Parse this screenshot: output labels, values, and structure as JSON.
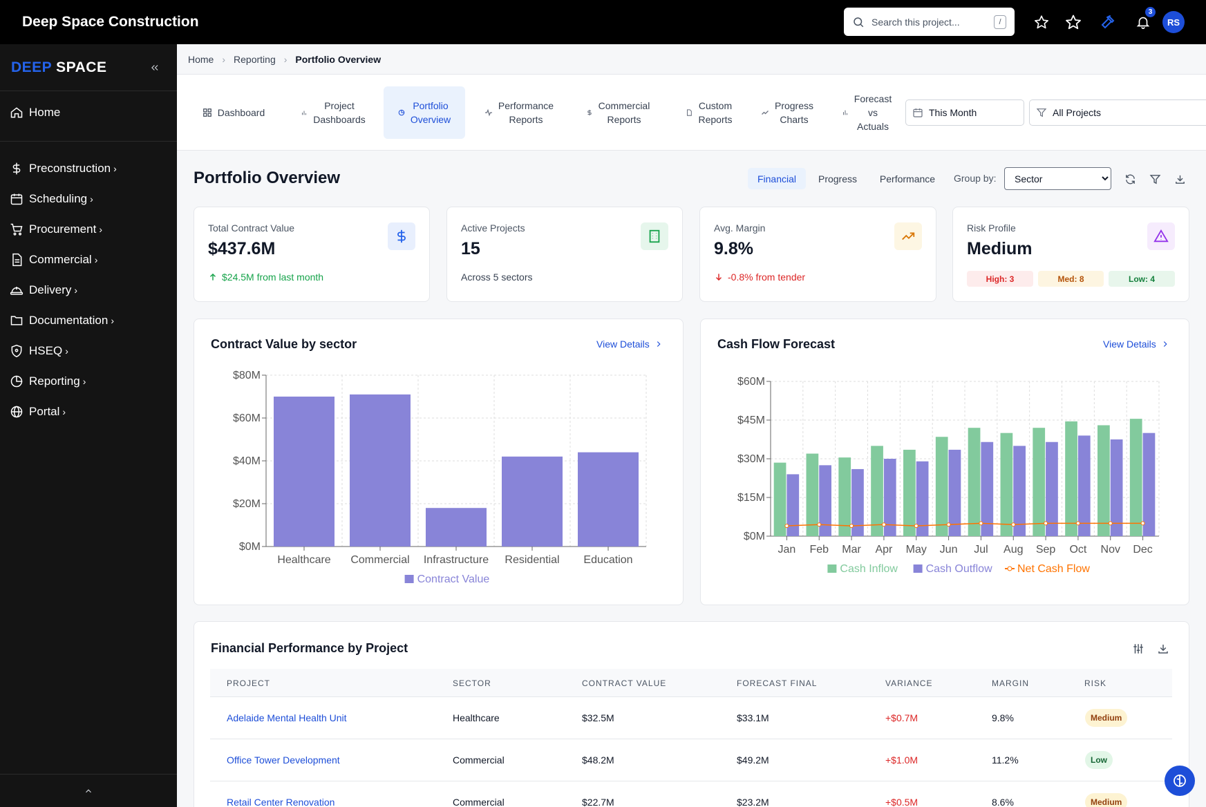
{
  "app": {
    "title": "Deep Space Construction"
  },
  "search": {
    "placeholder": "Search this project...",
    "shortcut": "/"
  },
  "header": {
    "notification_count": "3",
    "avatar_initials": "RS",
    "accent": "#1d4ed8"
  },
  "sidebar": {
    "brand_part1": "DEEP",
    "brand_part2": "SPACE",
    "home": "Home",
    "items": [
      {
        "label": "Preconstruction",
        "icon": "dollar-icon"
      },
      {
        "label": "Scheduling",
        "icon": "calendar-icon"
      },
      {
        "label": "Procurement",
        "icon": "cart-icon"
      },
      {
        "label": "Commercial",
        "icon": "document-icon"
      },
      {
        "label": "Delivery",
        "icon": "hardhat-icon"
      },
      {
        "label": "Documentation",
        "icon": "folder-icon"
      },
      {
        "label": "HSEQ",
        "icon": "shield-icon"
      },
      {
        "label": "Reporting",
        "icon": "piechart-icon"
      },
      {
        "label": "Portal",
        "icon": "globe-icon"
      }
    ]
  },
  "breadcrumb": {
    "home": "Home",
    "reporting": "Reporting",
    "current": "Portfolio Overview"
  },
  "tabs": [
    {
      "line1": "Dashboard",
      "line2": "",
      "line3": "",
      "icon": "grid-icon"
    },
    {
      "line1": "Project",
      "line2": "Dashboards",
      "line3": "",
      "icon": "bar-icon"
    },
    {
      "line1": "Portfolio",
      "line2": "Overview",
      "line3": "",
      "icon": "pie-icon"
    },
    {
      "line1": "Performance",
      "line2": "Reports",
      "line3": "",
      "icon": "pulse-icon"
    },
    {
      "line1": "Commercial",
      "line2": "Reports",
      "line3": "",
      "icon": "dollar-icon"
    },
    {
      "line1": "Custom",
      "line2": "Reports",
      "line3": "",
      "icon": "file-icon"
    },
    {
      "line1": "Progress",
      "line2": "Charts",
      "line3": "",
      "icon": "trend-icon"
    },
    {
      "line1": "Forecast",
      "line2": "vs",
      "line3": "Actuals",
      "icon": "chart-icon"
    }
  ],
  "filters": {
    "date": "This Month",
    "projects": "All Projects"
  },
  "page": {
    "title": "Portfolio Overview",
    "view_tabs": [
      "Financial",
      "Progress",
      "Performance"
    ],
    "group_by_label": "Group by:",
    "group_by_value": "Sector",
    "group_by_options": [
      "Sector"
    ]
  },
  "kpis": [
    {
      "label": "Total Contract Value",
      "value": "$437.6M",
      "sub": "$24.5M from last month",
      "icon": "dollar-icon"
    },
    {
      "label": "Active Projects",
      "value": "15",
      "sub": "Across 5 sectors",
      "icon": "building-icon"
    },
    {
      "label": "Avg. Margin",
      "value": "9.8%",
      "sub": "-0.8% from tender",
      "icon": "trending-up-icon"
    },
    {
      "label": "Risk Profile",
      "value": "Medium",
      "icon": "warning-icon",
      "high": "High: 3",
      "med": "Med: 8",
      "low": "Low: 4"
    }
  ],
  "charts_ui": {
    "view_details": "View Details"
  },
  "chart_data": [
    {
      "type": "bar",
      "title": "Contract Value by sector",
      "categories": [
        "Healthcare",
        "Commercial",
        "Infrastructure",
        "Residential",
        "Education"
      ],
      "series": [
        {
          "name": "Contract Value",
          "values": [
            70,
            71,
            18,
            42,
            44
          ],
          "color": "#8884d8"
        }
      ],
      "yticks": [
        "$0M",
        "$20M",
        "$40M",
        "$60M",
        "$80M"
      ],
      "ylim": [
        0,
        80
      ],
      "grid": true,
      "legend": "bottom"
    },
    {
      "type": "bar",
      "title": "Cash Flow Forecast",
      "categories": [
        "Jan",
        "Feb",
        "Mar",
        "Apr",
        "May",
        "Jun",
        "Jul",
        "Aug",
        "Sep",
        "Oct",
        "Nov",
        "Dec"
      ],
      "series": [
        {
          "name": "Cash Inflow",
          "values": [
            28.5,
            32,
            30.5,
            35,
            33.5,
            38.5,
            42,
            40,
            42,
            44.5,
            43,
            45.5
          ],
          "color": "#82ca9d"
        },
        {
          "name": "Cash Outflow",
          "values": [
            24,
            27.5,
            26,
            30,
            29,
            33.5,
            36.5,
            35,
            36.5,
            39,
            37.5,
            40
          ],
          "color": "#8884d8"
        },
        {
          "name": "Net Cash Flow",
          "values": [
            4,
            4.5,
            4,
            4.5,
            4,
            4.5,
            5,
            4.5,
            5,
            5,
            5,
            5
          ],
          "color": "#ff7300",
          "type": "line"
        }
      ],
      "yticks": [
        "$0M",
        "$15M",
        "$30M",
        "$45M",
        "$60M"
      ],
      "ylim": [
        0,
        60
      ],
      "grid": true,
      "legend": "bottom"
    }
  ],
  "table": {
    "title": "Financial Performance by Project",
    "columns": [
      "PROJECT",
      "SECTOR",
      "CONTRACT VALUE",
      "FORECAST FINAL",
      "VARIANCE",
      "MARGIN",
      "RISK"
    ],
    "rows": [
      {
        "project": "Adelaide Mental Health Unit",
        "sector": "Healthcare",
        "contract": "$32.5M",
        "forecast": "$33.1M",
        "variance": "+$0.7M",
        "margin": "9.8%",
        "risk": "Medium"
      },
      {
        "project": "Office Tower Development",
        "sector": "Commercial",
        "contract": "$48.2M",
        "forecast": "$49.2M",
        "variance": "+$1.0M",
        "margin": "11.2%",
        "risk": "Low"
      },
      {
        "project": "Retail Center Renovation",
        "sector": "Commercial",
        "contract": "$22.7M",
        "forecast": "$23.2M",
        "variance": "+$0.5M",
        "margin": "8.6%",
        "risk": "Medium"
      }
    ]
  }
}
